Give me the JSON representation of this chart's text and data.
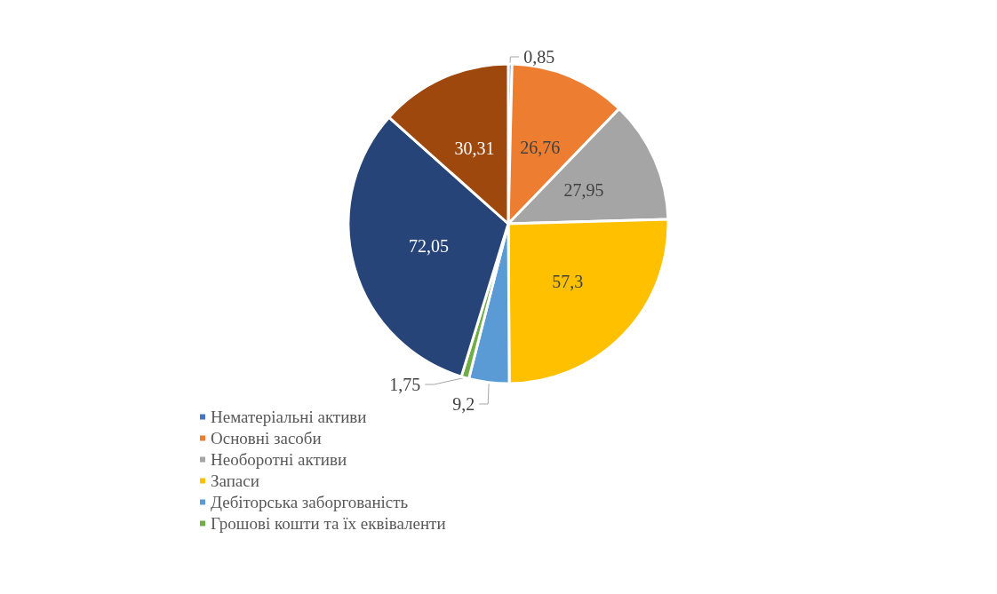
{
  "chart_data": {
    "type": "pie",
    "categories": [
      "Нематеріальні активи",
      "Основні засоби",
      "Необоротні активи",
      "Запаси",
      "Дебіторська заборгованість",
      "Грошові кошти та їх еквіваленти",
      null,
      null
    ],
    "values": [
      0.85,
      26.76,
      27.95,
      57.3,
      9.2,
      1.75,
      72.05,
      30.31
    ],
    "value_labels": [
      "0,85",
      "26,76",
      "27,95",
      "57,3",
      "9,2",
      "1,75",
      "72,05",
      "30,31"
    ],
    "colors": [
      "#4472c4",
      "#ed7d31",
      "#a5a5a5",
      "#ffc000",
      "#5b9bd5",
      "#70ad47",
      "#264478",
      "#9e480e"
    ],
    "legend": "bottom left"
  }
}
